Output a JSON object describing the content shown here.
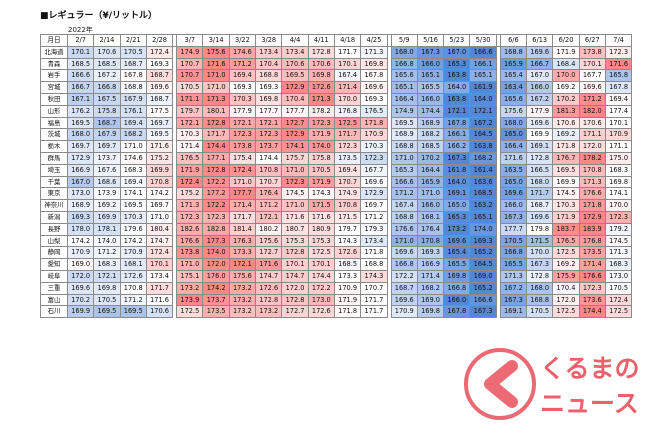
{
  "title": "■レギュラー（¥/リットル）",
  "year_label": "2022年",
  "corner_label": "月日",
  "dates": [
    "2/7",
    "2/14",
    "2/21",
    "2/28",
    "3/7",
    "3/14",
    "3/22",
    "3/28",
    "4/4",
    "4/11",
    "4/18",
    "4/25",
    "5/9",
    "5/16",
    "5/23",
    "5/30",
    "6/6",
    "6/13",
    "6/20",
    "6/27",
    "7/4"
  ],
  "rows": [
    {
      "pref": "北海道",
      "values": [
        "170.1",
        "170.6",
        "170.5",
        "172.4",
        "174.9",
        "175.6",
        "174.6",
        "173.4",
        "173.4",
        "172.8",
        "171.7",
        "171.3",
        "168.0",
        "167.3",
        "167.0",
        "166.6",
        "168.8",
        "169.6",
        "171.9",
        "173.8",
        "172.3"
      ]
    },
    {
      "pref": "青森",
      "values": [
        "168.5",
        "168.5",
        "168.7",
        "169.3",
        "170.7",
        "171.6",
        "171.2",
        "170.4",
        "170.6",
        "170.6",
        "170.1",
        "169.8",
        "166.8",
        "166.0",
        "165.3",
        "166.1",
        "165.9",
        "166.7",
        "168.4",
        "170.1",
        "171.6"
      ]
    },
    {
      "pref": "岩手",
      "values": [
        "166.6",
        "167.2",
        "167.8",
        "168.7",
        "170.7",
        "171.0",
        "169.4",
        "168.8",
        "169.5",
        "169.8",
        "167.4",
        "167.8",
        "165.6",
        "165.1",
        "163.8",
        "165.1",
        "165.4",
        "167.0",
        "170.0",
        "167.7",
        "165.8"
      ]
    },
    {
      "pref": "宮城",
      "values": [
        "166.7",
        "166.8",
        "168.8",
        "169.6",
        "170.5",
        "171.0",
        "169.3",
        "169.3",
        "172.9",
        "172.6",
        "171.4",
        "169.6",
        "165.1",
        "165.5",
        "164.0",
        "161.9",
        "163.4",
        "166.0",
        "169.2",
        "169.6",
        "167.8"
      ]
    },
    {
      "pref": "秋田",
      "values": [
        "167.1",
        "167.5",
        "167.9",
        "168.7",
        "171.1",
        "171.3",
        "170.3",
        "169.8",
        "170.4",
        "171.3",
        "170.0",
        "169.3",
        "166.4",
        "166.0",
        "163.8",
        "164.0",
        "165.6",
        "167.2",
        "170.2",
        "171.2",
        "169.4"
      ]
    },
    {
      "pref": "山形",
      "values": [
        "176.2",
        "175.8",
        "176.1",
        "177.5",
        "179.7",
        "180.1",
        "177.9",
        "177.7",
        "177.7",
        "178.2",
        "176.8",
        "176.5",
        "174.9",
        "174.4",
        "172.1",
        "172.1",
        "175.6",
        "177.9",
        "181.3",
        "182.0",
        "177.4"
      ]
    },
    {
      "pref": "福島",
      "values": [
        "169.5",
        "168.7",
        "169.4",
        "169.7",
        "172.1",
        "172.8",
        "172.1",
        "172.1",
        "172.7",
        "172.3",
        "172.5",
        "171.8",
        "169.5",
        "168.9",
        "167.8",
        "167.2",
        "168.0",
        "169.6",
        "170.6",
        "170.6",
        "170.1"
      ]
    },
    {
      "pref": "茨城",
      "values": [
        "168.0",
        "167.9",
        "168.2",
        "169.5",
        "170.3",
        "171.7",
        "172.3",
        "172.3",
        "172.9",
        "171.9",
        "171.7",
        "170.9",
        "168.9",
        "168.2",
        "166.1",
        "164.5",
        "165.0",
        "169.9",
        "169.2",
        "171.1",
        "170.9"
      ]
    },
    {
      "pref": "栃木",
      "values": [
        "169.7",
        "169.7",
        "171.0",
        "171.6",
        "171.4",
        "174.4",
        "173.8",
        "173.7",
        "174.1",
        "174.0",
        "172.3",
        "170.3",
        "168.8",
        "168.5",
        "166.2",
        "163.8",
        "166.4",
        "169.1",
        "171.8",
        "172.0",
        "171.1"
      ]
    },
    {
      "pref": "群馬",
      "values": [
        "172.9",
        "173.7",
        "174.6",
        "175.2",
        "176.5",
        "177.1",
        "175.4",
        "174.4",
        "175.7",
        "175.8",
        "173.5",
        "172.3",
        "171.0",
        "170.2",
        "167.3",
        "168.2",
        "171.6",
        "172.8",
        "176.7",
        "178.2",
        "175.0"
      ]
    },
    {
      "pref": "埼玉",
      "values": [
        "166.9",
        "167.6",
        "168.3",
        "169.9",
        "171.9",
        "172.8",
        "172.4",
        "170.8",
        "171.0",
        "170.5",
        "169.4",
        "167.7",
        "165.3",
        "164.4",
        "161.8",
        "161.4",
        "163.5",
        "166.5",
        "169.5",
        "170.8",
        "168.3"
      ]
    },
    {
      "pref": "千葉",
      "values": [
        "167.0",
        "168.6",
        "169.4",
        "170.8",
        "172.4",
        "172.2",
        "171.0",
        "170.7",
        "172.3",
        "171.9",
        "170.7",
        "169.6",
        "166.6",
        "165.9",
        "164.0",
        "163.6",
        "165.0",
        "168.0",
        "169.9",
        "171.3",
        "169.8"
      ]
    },
    {
      "pref": "東京",
      "values": [
        "173.0",
        "173.9",
        "174.1",
        "174.2",
        "175.2",
        "177.2",
        "177.7",
        "176.4",
        "174.5",
        "174.3",
        "174.9",
        "172.9",
        "171.2",
        "171.0",
        "169.1",
        "168.5",
        "169.6",
        "171.7",
        "174.5",
        "176.6",
        "174.1"
      ]
    },
    {
      "pref": "神奈川",
      "values": [
        "168.9",
        "169.2",
        "169.5",
        "169.7",
        "171.3",
        "172.2",
        "171.4",
        "171.2",
        "171.0",
        "171.5",
        "170.8",
        "169.7",
        "167.4",
        "166.0",
        "165.0",
        "163.2",
        "166.0",
        "168.7",
        "170.3",
        "171.8",
        "170.0"
      ]
    },
    {
      "pref": "新潟",
      "values": [
        "169.3",
        "169.9",
        "170.3",
        "171.0",
        "172.3",
        "172.3",
        "171.7",
        "172.1",
        "171.6",
        "171.6",
        "171.5",
        "171.2",
        "168.8",
        "168.1",
        "165.3",
        "165.1",
        "167.3",
        "169.6",
        "171.9",
        "172.9",
        "172.3"
      ]
    },
    {
      "pref": "長野",
      "values": [
        "178.0",
        "178.1",
        "179.6",
        "180.4",
        "182.6",
        "182.8",
        "181.4",
        "180.2",
        "180.7",
        "180.9",
        "179.7",
        "179.3",
        "176.6",
        "176.4",
        "173.2",
        "174.0",
        "177.7",
        "179.8",
        "183.7",
        "183.9",
        "179.2"
      ]
    },
    {
      "pref": "山梨",
      "values": [
        "174.2",
        "174.0",
        "174.2",
        "174.7",
        "176.6",
        "177.3",
        "176.3",
        "175.6",
        "175.3",
        "175.3",
        "174.3",
        "173.4",
        "171.0",
        "170.8",
        "169.6",
        "169.3",
        "170.5",
        "171.5",
        "176.5",
        "176.8",
        "174.5"
      ]
    },
    {
      "pref": "静岡",
      "values": [
        "170.9",
        "171.2",
        "170.9",
        "172.4",
        "173.8",
        "174.0",
        "173.3",
        "172.7",
        "172.8",
        "172.5",
        "172.6",
        "171.8",
        "169.6",
        "169.3",
        "165.4",
        "165.2",
        "166.8",
        "170.0",
        "172.5",
        "173.5",
        "171.3"
      ]
    },
    {
      "pref": "愛知",
      "values": [
        "169.0",
        "168.3",
        "168.1",
        "170.1",
        "171.0",
        "172.0",
        "172.1",
        "171.6",
        "170.1",
        "170.1",
        "168.5",
        "168.8",
        "166.8",
        "166.9",
        "165.5",
        "164.5",
        "165.5",
        "167.3",
        "169.2",
        "171.4",
        "168.3"
      ]
    },
    {
      "pref": "岐阜",
      "values": [
        "172.0",
        "172.1",
        "172.6",
        "173.4",
        "175.1",
        "176.0",
        "175.6",
        "174.7",
        "174.7",
        "174.4",
        "173.3",
        "174.3",
        "172.2",
        "171.4",
        "169.8",
        "169.0",
        "171.3",
        "172.8",
        "175.9",
        "176.6",
        "173.0"
      ]
    },
    {
      "pref": "三重",
      "values": [
        "169.6",
        "169.8",
        "170.8",
        "171.7",
        "173.2",
        "174.2",
        "173.2",
        "172.6",
        "172.0",
        "172.2",
        "170.9",
        "170.7",
        "168.7",
        "168.2",
        "166.8",
        "165.2",
        "167.2",
        "168.0",
        "170.4",
        "172.3",
        "170.5"
      ]
    },
    {
      "pref": "富山",
      "values": [
        "170.2",
        "170.5",
        "171.2",
        "171.6",
        "173.9",
        "173.7",
        "173.2",
        "172.8",
        "172.8",
        "173.0",
        "171.9",
        "171.7",
        "169.6",
        "169.0",
        "166.0",
        "166.6",
        "167.3",
        "168.8",
        "172.0",
        "173.6",
        "172.4"
      ]
    },
    {
      "pref": "石川",
      "values": [
        "169.9",
        "169.5",
        "169.5",
        "170.6",
        "172.5",
        "173.5",
        "173.2",
        "173.2",
        "172.7",
        "172.6",
        "171.8",
        "171.7",
        "170.9",
        "169.8",
        "167.8",
        "167.3",
        "169.1",
        "170.5",
        "172.5",
        "174.4",
        "172.5"
      ]
    }
  ],
  "logo": {
    "line1": "くるまの",
    "line2": "ニュース",
    "color": "#e8505b"
  }
}
